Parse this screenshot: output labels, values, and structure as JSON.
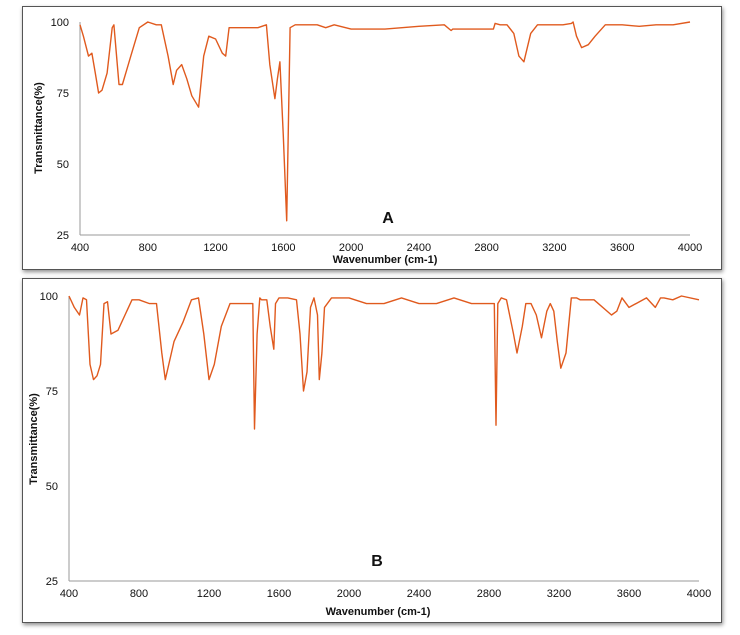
{
  "chart_data": [
    {
      "type": "line",
      "panel_label": "A",
      "xlabel": "Wavenumber (cm-1)",
      "ylabel": "Transmittance(%)",
      "xlim": [
        400,
        4000
      ],
      "ylim": [
        25,
        100
      ],
      "x_ticks": [
        "400",
        "800",
        "1200",
        "1600",
        "2000",
        "2400",
        "2800",
        "3200",
        "3600",
        "4000"
      ],
      "y_ticks": [
        "25",
        "50",
        "75",
        "100"
      ],
      "grid": false,
      "legend": "none",
      "line_color": "#e05a1e",
      "series": [
        {
          "x": [
            400,
            420,
            450,
            470,
            490,
            510,
            530,
            560,
            590,
            600,
            630,
            650,
            700,
            750,
            800,
            850,
            880,
            920,
            950,
            970,
            1000,
            1030,
            1060,
            1100,
            1130,
            1160,
            1200,
            1240,
            1260,
            1280,
            1350,
            1450,
            1500,
            1520,
            1550,
            1565,
            1580,
            1600,
            1620,
            1640,
            1670,
            1700,
            1750,
            1800,
            1850,
            1900,
            2000,
            2100,
            2200,
            2400,
            2550,
            2580,
            2590,
            2600,
            2700,
            2800,
            2840,
            2850,
            2880,
            2920,
            2960,
            2990,
            3020,
            3060,
            3100,
            3200,
            3250,
            3300,
            3310,
            3330,
            3360,
            3400,
            3440,
            3500,
            3600,
            3700,
            3800,
            3900,
            4000
          ],
          "y": [
            99,
            95,
            88,
            89,
            82,
            75,
            76,
            82,
            98,
            99,
            78,
            78,
            88,
            98,
            100,
            99,
            99,
            88,
            78,
            83,
            85,
            80,
            74,
            70,
            88,
            95,
            94,
            89,
            88,
            98,
            98,
            98,
            99,
            85,
            73,
            80,
            86,
            60,
            30,
            98,
            99,
            99,
            99,
            99,
            98,
            99,
            97.5,
            97.5,
            97.5,
            98.5,
            99,
            97.5,
            97,
            97.5,
            97.5,
            97.5,
            97.5,
            99.5,
            99,
            99,
            96,
            88,
            86,
            96,
            99,
            99,
            99,
            99.5,
            100,
            95,
            91,
            92,
            95,
            99,
            99,
            98.5,
            99,
            99,
            100
          ]
        }
      ]
    },
    {
      "type": "line",
      "panel_label": "B",
      "xlabel": "Wavenumber (cm-1)",
      "ylabel": "Transmittance(%)",
      "xlim": [
        400,
        4000
      ],
      "ylim": [
        25,
        100
      ],
      "x_ticks": [
        "400",
        "800",
        "1200",
        "1600",
        "2000",
        "2400",
        "2800",
        "3200",
        "3600",
        "4000"
      ],
      "y_ticks": [
        "25",
        "50",
        "75",
        "100"
      ],
      "grid": false,
      "legend": "none",
      "line_color": "#e05a1e",
      "series": [
        {
          "x": [
            400,
            430,
            460,
            480,
            500,
            520,
            540,
            560,
            580,
            600,
            620,
            640,
            680,
            720,
            760,
            800,
            860,
            900,
            930,
            950,
            970,
            1000,
            1050,
            1100,
            1140,
            1170,
            1200,
            1230,
            1270,
            1320,
            1400,
            1450,
            1460,
            1475,
            1490,
            1500,
            1530,
            1550,
            1570,
            1580,
            1600,
            1650,
            1700,
            1720,
            1740,
            1760,
            1780,
            1800,
            1820,
            1830,
            1845,
            1860,
            1900,
            2000,
            2100,
            2200,
            2300,
            2400,
            2500,
            2600,
            2700,
            2800,
            2830,
            2840,
            2850,
            2870,
            2900,
            2940,
            2960,
            2990,
            3010,
            3040,
            3070,
            3100,
            3130,
            3150,
            3170,
            3190,
            3210,
            3240,
            3270,
            3300,
            3320,
            3340,
            3400,
            3500,
            3530,
            3560,
            3600,
            3700,
            3730,
            3750,
            3780,
            3800,
            3850,
            3900,
            4000
          ],
          "y": [
            100,
            97,
            95,
            99.5,
            99,
            82,
            78,
            79,
            82,
            98,
            98.5,
            90,
            91,
            95,
            99,
            99,
            98,
            98,
            85,
            78,
            82,
            88,
            93,
            99,
            99.5,
            90,
            78,
            82,
            92,
            98,
            98,
            98,
            65,
            90,
            99.5,
            99,
            99,
            92,
            86,
            98,
            99.5,
            99.5,
            99,
            90,
            75,
            80,
            97,
            99.5,
            95,
            78,
            85,
            97,
            99.5,
            99.5,
            98,
            98,
            99.5,
            98,
            98,
            99.5,
            98,
            98,
            98,
            66,
            98,
            99.5,
            99,
            90,
            85,
            92,
            98,
            98,
            95,
            89,
            96,
            98,
            96,
            88,
            81,
            85,
            99.5,
            99.5,
            99,
            99,
            99,
            95,
            96,
            99.5,
            97,
            99.5,
            98,
            97,
            99.5,
            99.5,
            99,
            100,
            99
          ]
        }
      ]
    }
  ]
}
